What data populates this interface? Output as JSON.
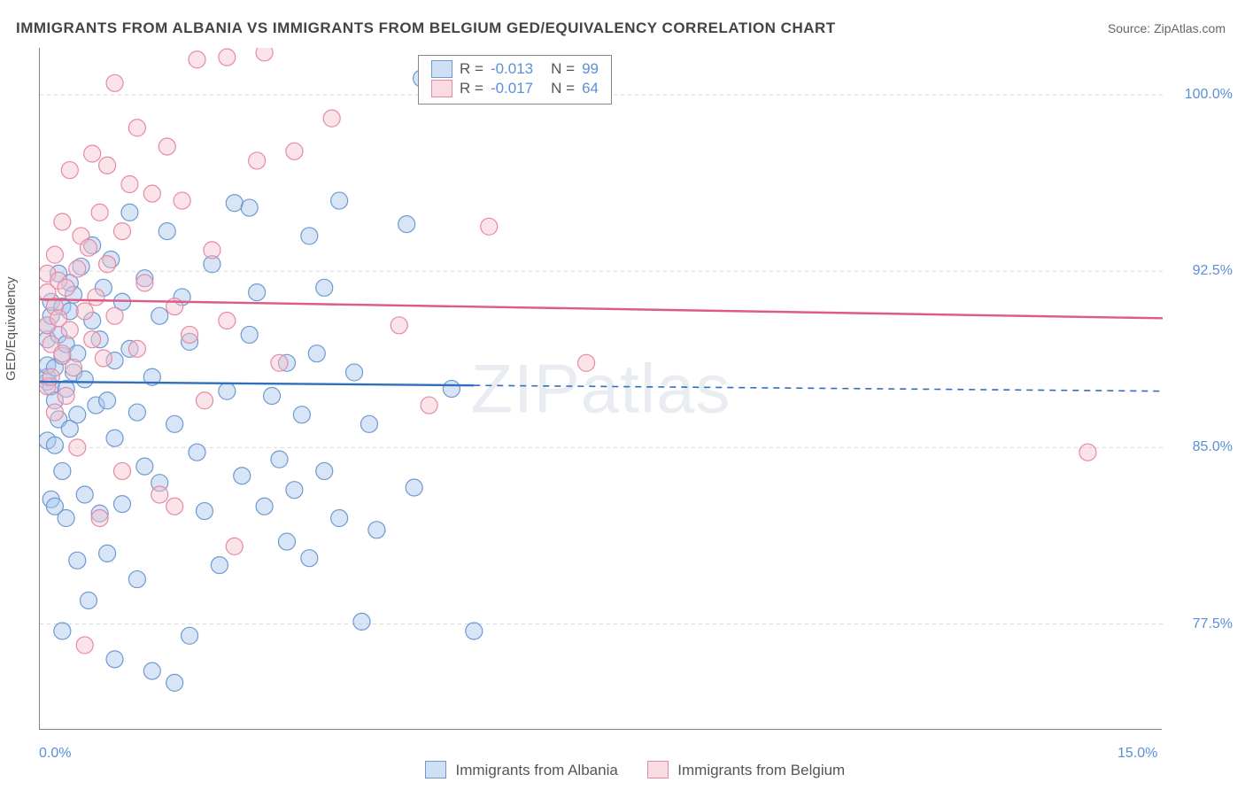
{
  "title": "IMMIGRANTS FROM ALBANIA VS IMMIGRANTS FROM BELGIUM GED/EQUIVALENCY CORRELATION CHART",
  "source": "Source: ZipAtlas.com",
  "watermark": "ZIPatlas",
  "ylabel": "GED/Equivalency",
  "chart": {
    "type": "scatter-correlation",
    "xlim": [
      0.0,
      15.0
    ],
    "ylim": [
      73.0,
      102.0
    ],
    "x_ticks_minor": [
      0,
      1,
      2,
      3,
      4,
      5,
      6,
      7,
      8,
      9,
      10,
      11,
      12,
      13,
      14,
      15
    ],
    "x_labels": [
      {
        "v": 0.0,
        "t": "0.0%"
      },
      {
        "v": 15.0,
        "t": "15.0%"
      }
    ],
    "y_grid": [
      77.5,
      85.0,
      92.5,
      100.0
    ],
    "y_labels": [
      {
        "v": 77.5,
        "t": "77.5%"
      },
      {
        "v": 85.0,
        "t": "85.0%"
      },
      {
        "v": 92.5,
        "t": "92.5%"
      },
      {
        "v": 100.0,
        "t": "100.0%"
      }
    ],
    "grid_color": "#d9d9d9",
    "grid_dash": "4,4",
    "axis_color": "#808080",
    "background": "#ffffff",
    "marker_radius": 9.5,
    "marker_opacity": 0.45,
    "series": [
      {
        "key": "albania",
        "label": "Immigrants from Albania",
        "color_fill": "#a9c6ea",
        "color_stroke": "#6e9ad0",
        "line_color": "#2e6fbf",
        "R": "-0.013",
        "N": "99",
        "regression": {
          "y_at_xmin": 87.8,
          "y_at_xmax": 87.4,
          "solid_until_x": 5.8
        },
        "points": [
          [
            0.1,
            85.3
          ],
          [
            0.1,
            87.8
          ],
          [
            0.1,
            88.0
          ],
          [
            0.1,
            88.5
          ],
          [
            0.1,
            89.6
          ],
          [
            0.1,
            90.2
          ],
          [
            0.15,
            82.8
          ],
          [
            0.15,
            87.6
          ],
          [
            0.15,
            90.6
          ],
          [
            0.15,
            91.2
          ],
          [
            0.2,
            85.1
          ],
          [
            0.2,
            87.0
          ],
          [
            0.2,
            82.5
          ],
          [
            0.2,
            88.4
          ],
          [
            0.25,
            86.2
          ],
          [
            0.25,
            89.8
          ],
          [
            0.25,
            92.4
          ],
          [
            0.3,
            77.2
          ],
          [
            0.3,
            84.0
          ],
          [
            0.3,
            88.9
          ],
          [
            0.3,
            91.0
          ],
          [
            0.35,
            82.0
          ],
          [
            0.35,
            87.5
          ],
          [
            0.35,
            89.4
          ],
          [
            0.4,
            85.8
          ],
          [
            0.4,
            90.8
          ],
          [
            0.4,
            92.0
          ],
          [
            0.45,
            88.2
          ],
          [
            0.45,
            91.5
          ],
          [
            0.5,
            80.2
          ],
          [
            0.5,
            86.4
          ],
          [
            0.5,
            89.0
          ],
          [
            0.55,
            92.7
          ],
          [
            0.6,
            83.0
          ],
          [
            0.6,
            87.9
          ],
          [
            0.65,
            78.5
          ],
          [
            0.7,
            90.4
          ],
          [
            0.7,
            93.6
          ],
          [
            0.75,
            86.8
          ],
          [
            0.8,
            82.2
          ],
          [
            0.8,
            89.6
          ],
          [
            0.85,
            91.8
          ],
          [
            0.9,
            80.5
          ],
          [
            0.9,
            87.0
          ],
          [
            0.95,
            93.0
          ],
          [
            1.0,
            76.0
          ],
          [
            1.0,
            85.4
          ],
          [
            1.0,
            88.7
          ],
          [
            1.1,
            91.2
          ],
          [
            1.1,
            82.6
          ],
          [
            1.2,
            89.2
          ],
          [
            1.2,
            95.0
          ],
          [
            1.3,
            79.4
          ],
          [
            1.3,
            86.5
          ],
          [
            1.4,
            92.2
          ],
          [
            1.4,
            84.2
          ],
          [
            1.5,
            75.5
          ],
          [
            1.5,
            88.0
          ],
          [
            1.6,
            90.6
          ],
          [
            1.6,
            83.5
          ],
          [
            1.7,
            94.2
          ],
          [
            1.8,
            75.0
          ],
          [
            1.8,
            86.0
          ],
          [
            1.9,
            91.4
          ],
          [
            2.0,
            77.0
          ],
          [
            2.0,
            89.5
          ],
          [
            2.1,
            84.8
          ],
          [
            2.2,
            82.3
          ],
          [
            2.3,
            92.8
          ],
          [
            2.4,
            80.0
          ],
          [
            2.5,
            87.4
          ],
          [
            2.6,
            95.4
          ],
          [
            2.7,
            83.8
          ],
          [
            2.8,
            89.8
          ],
          [
            2.8,
            95.2
          ],
          [
            2.9,
            91.6
          ],
          [
            3.0,
            82.5
          ],
          [
            3.1,
            87.2
          ],
          [
            3.2,
            84.5
          ],
          [
            3.3,
            81.0
          ],
          [
            3.3,
            88.6
          ],
          [
            3.4,
            83.2
          ],
          [
            3.5,
            86.4
          ],
          [
            3.6,
            94.0
          ],
          [
            3.6,
            80.3
          ],
          [
            3.7,
            89.0
          ],
          [
            3.8,
            84.0
          ],
          [
            3.8,
            91.8
          ],
          [
            4.0,
            82.0
          ],
          [
            4.0,
            95.5
          ],
          [
            4.2,
            88.2
          ],
          [
            4.3,
            77.6
          ],
          [
            4.4,
            86.0
          ],
          [
            4.5,
            81.5
          ],
          [
            4.9,
            94.5
          ],
          [
            5.0,
            83.3
          ],
          [
            5.1,
            100.7
          ],
          [
            5.5,
            87.5
          ],
          [
            5.8,
            77.2
          ]
        ]
      },
      {
        "key": "belgium",
        "label": "Immigrants from Belgium",
        "color_fill": "#f4c2cf",
        "color_stroke": "#e68aa4",
        "line_color": "#dd5b84",
        "R": "-0.017",
        "N": "64",
        "regression": {
          "y_at_xmin": 91.3,
          "y_at_xmax": 90.5,
          "solid_until_x": 15.0
        },
        "points": [
          [
            0.1,
            87.6
          ],
          [
            0.1,
            90.2
          ],
          [
            0.1,
            91.6
          ],
          [
            0.1,
            92.4
          ],
          [
            0.15,
            88.0
          ],
          [
            0.15,
            89.4
          ],
          [
            0.2,
            86.5
          ],
          [
            0.2,
            91.0
          ],
          [
            0.2,
            93.2
          ],
          [
            0.25,
            90.5
          ],
          [
            0.25,
            92.1
          ],
          [
            0.3,
            89.0
          ],
          [
            0.3,
            94.6
          ],
          [
            0.35,
            87.2
          ],
          [
            0.35,
            91.8
          ],
          [
            0.4,
            96.8
          ],
          [
            0.4,
            90.0
          ],
          [
            0.45,
            88.4
          ],
          [
            0.5,
            92.6
          ],
          [
            0.5,
            85.0
          ],
          [
            0.55,
            94.0
          ],
          [
            0.6,
            76.6
          ],
          [
            0.6,
            90.8
          ],
          [
            0.65,
            93.5
          ],
          [
            0.7,
            89.6
          ],
          [
            0.7,
            97.5
          ],
          [
            0.75,
            91.4
          ],
          [
            0.8,
            82.0
          ],
          [
            0.8,
            95.0
          ],
          [
            0.85,
            88.8
          ],
          [
            0.9,
            92.8
          ],
          [
            0.9,
            97.0
          ],
          [
            1.0,
            100.5
          ],
          [
            1.0,
            90.6
          ],
          [
            1.1,
            84.0
          ],
          [
            1.1,
            94.2
          ],
          [
            1.2,
            96.2
          ],
          [
            1.3,
            89.2
          ],
          [
            1.3,
            98.6
          ],
          [
            1.4,
            92.0
          ],
          [
            1.5,
            95.8
          ],
          [
            1.6,
            83.0
          ],
          [
            1.7,
            97.8
          ],
          [
            1.8,
            91.0
          ],
          [
            1.8,
            82.5
          ],
          [
            1.9,
            95.5
          ],
          [
            2.0,
            89.8
          ],
          [
            2.1,
            101.5
          ],
          [
            2.2,
            87.0
          ],
          [
            2.3,
            93.4
          ],
          [
            2.5,
            90.4
          ],
          [
            2.5,
            101.6
          ],
          [
            2.6,
            80.8
          ],
          [
            2.9,
            97.2
          ],
          [
            3.0,
            101.8
          ],
          [
            3.2,
            88.6
          ],
          [
            3.4,
            97.6
          ],
          [
            3.9,
            99.0
          ],
          [
            4.8,
            90.2
          ],
          [
            5.2,
            86.8
          ],
          [
            6.0,
            94.4
          ],
          [
            7.3,
            88.6
          ],
          [
            7.5,
            101.0
          ],
          [
            14.0,
            84.8
          ]
        ]
      }
    ]
  },
  "legend": {
    "series1": "Immigrants from Albania",
    "series2": "Immigrants from Belgium"
  }
}
